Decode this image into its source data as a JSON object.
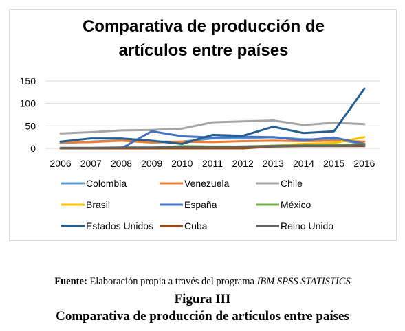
{
  "chart_data": {
    "type": "line",
    "title_lines": [
      "Comparativa de producción de",
      "artículos entre países"
    ],
    "categories": [
      "2006",
      "2007",
      "2008",
      "2009",
      "2010",
      "2011",
      "2012",
      "2013",
      "2014",
      "2015",
      "2016"
    ],
    "ylim": [
      0,
      150
    ],
    "yticks": [
      0,
      50,
      100,
      150
    ],
    "grid": true,
    "legend_position": "bottom",
    "series": [
      {
        "name": "Colombia",
        "color": "#5b9bd5",
        "values": [
          12,
          15,
          18,
          15,
          15,
          22,
          22,
          25,
          20,
          20,
          10
        ]
      },
      {
        "name": "Venezuela",
        "color": "#ed7d31",
        "values": [
          13,
          14,
          17,
          13,
          15,
          14,
          16,
          17,
          16,
          17,
          15
        ]
      },
      {
        "name": "Chile",
        "color": "#a5a5a5",
        "values": [
          33,
          36,
          40,
          41,
          44,
          58,
          60,
          62,
          52,
          57,
          54
        ]
      },
      {
        "name": "Brasil",
        "color": "#ffc000",
        "values": [
          0,
          0,
          0,
          0,
          0,
          0,
          0,
          6,
          10,
          12,
          25
        ]
      },
      {
        "name": "España",
        "color": "#4472c4",
        "values": [
          0,
          0,
          0,
          38,
          27,
          24,
          26,
          25,
          18,
          24,
          10
        ]
      },
      {
        "name": "México",
        "color": "#70ad47",
        "values": [
          0,
          0,
          2,
          1,
          5,
          4,
          4,
          6,
          7,
          8,
          9
        ]
      },
      {
        "name": "Estados Unidos",
        "color": "#255e91",
        "values": [
          15,
          22,
          22,
          17,
          10,
          30,
          28,
          48,
          34,
          38,
          133
        ]
      },
      {
        "name": "Cuba",
        "color": "#9e480e",
        "values": [
          0,
          0,
          0,
          0,
          0,
          0,
          0,
          4,
          5,
          5,
          5
        ]
      },
      {
        "name": "Reino Unido",
        "color": "#636363",
        "values": [
          1,
          1,
          2,
          2,
          3,
          3,
          4,
          5,
          6,
          6,
          7
        ]
      }
    ]
  },
  "caption": {
    "source_label": "Fuente:",
    "source_text": "Elaboración propia a través del programa",
    "source_program": "IBM SPSS STATISTICS",
    "figure_label": "Figura III",
    "figure_title": "Comparativa de producción de artículos entre países"
  }
}
